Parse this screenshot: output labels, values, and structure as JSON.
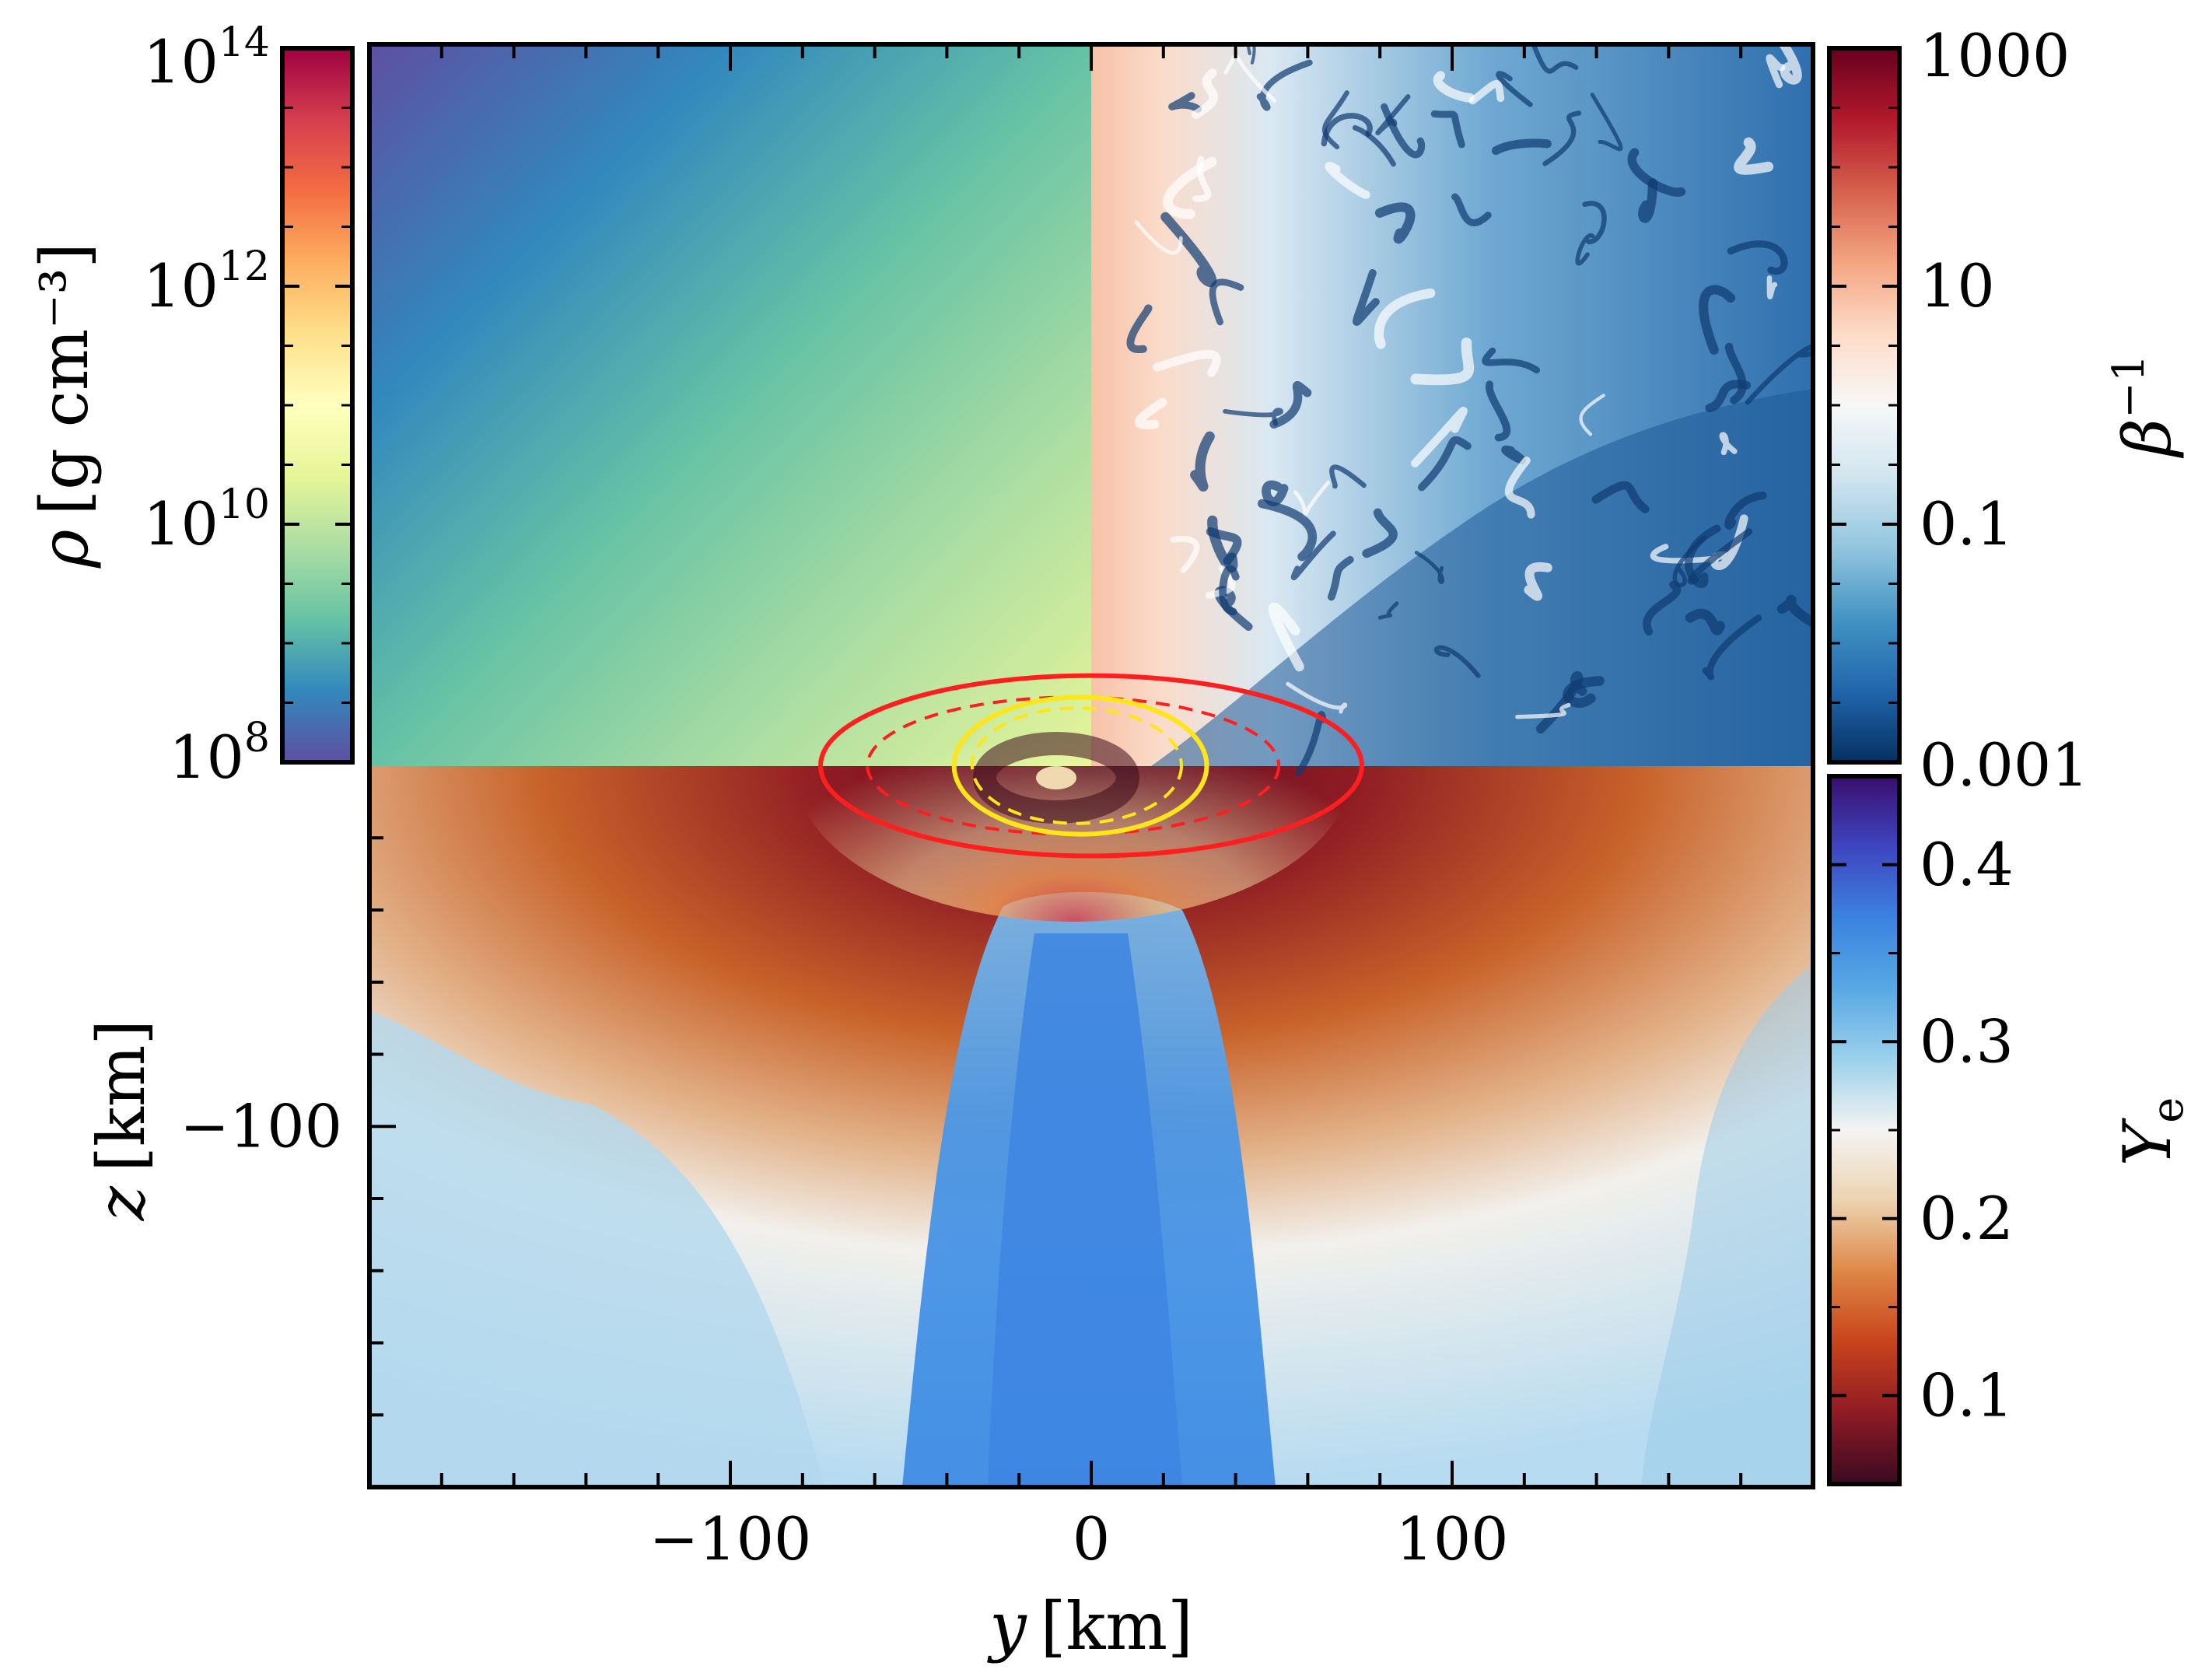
{
  "chart_data": {
    "type": "heatmap",
    "axes": {
      "xlabel": {
        "symbol": "y",
        "unit": "[km]"
      },
      "ylabel": {
        "symbol": "z",
        "unit": "[km]"
      },
      "xlim": [
        -200,
        200
      ],
      "ylim": [
        -200,
        200
      ],
      "x_ticks": [
        {
          "value": -100,
          "label": "−100"
        },
        {
          "value": 0,
          "label": "0"
        },
        {
          "value": 100,
          "label": "100"
        }
      ],
      "x_minor_step": 20,
      "y_ticks": [
        {
          "value": -100,
          "label": "−100"
        }
      ],
      "y_minor_step": 20
    },
    "panels": [
      {
        "quadrant": "top-left",
        "field": "rho",
        "colorbar": "density"
      },
      {
        "quadrant": "top-right",
        "field": "beta_inverse",
        "colorbar": "beta"
      },
      {
        "quadrant": "bottom",
        "field": "Ye",
        "colorbar": "ye"
      }
    ],
    "colorbars": {
      "density": {
        "side": "left",
        "label_symbol": "ρ",
        "label_unit": "[g cm⁻³]",
        "scale": "log",
        "range": [
          8,
          14
        ],
        "ticks": [
          {
            "value": 14,
            "base": "10",
            "exp": "14"
          },
          {
            "value": 12,
            "base": "10",
            "exp": "12"
          },
          {
            "value": 10,
            "base": "10",
            "exp": "10"
          },
          {
            "value": 8,
            "base": "10",
            "exp": "8"
          }
        ],
        "colormap": [
          "#5E4FA2",
          "#3288BD",
          "#66C2A5",
          "#ABDDA4",
          "#E6F598",
          "#FFFFBF",
          "#FEE08B",
          "#FDAE61",
          "#F46D43",
          "#D53E4F",
          "#9E0142"
        ]
      },
      "beta": {
        "side": "right",
        "label_symbol": "β",
        "label_exp": "−1",
        "scale": "log",
        "range": [
          -3,
          3
        ],
        "ticks": [
          {
            "value": 3,
            "label": "1000"
          },
          {
            "value": 1,
            "label": "10"
          },
          {
            "value": -1,
            "label": "0.1"
          },
          {
            "value": -3,
            "label": "0.001"
          }
        ],
        "colormap": [
          "#053061",
          "#2166AC",
          "#4393C3",
          "#92C5DE",
          "#D1E5F0",
          "#F7F7F7",
          "#FDDBC7",
          "#F4A582",
          "#D6604D",
          "#B2182B",
          "#67001F"
        ]
      },
      "ye": {
        "side": "right",
        "label_symbol": "Y",
        "label_sub": "e",
        "scale": "linear",
        "range": [
          0.05,
          0.45
        ],
        "ticks": [
          {
            "value": 0.4,
            "label": "0.4"
          },
          {
            "value": 0.3,
            "label": "0.3"
          },
          {
            "value": 0.2,
            "label": "0.2"
          },
          {
            "value": 0.1,
            "label": "0.1"
          }
        ],
        "colormap": [
          "#3A0A22",
          "#8E1B24",
          "#C8431C",
          "#DE8746",
          "#ECD2B0",
          "#F4F4F2",
          "#9CD0EC",
          "#58A8E4",
          "#3C82E0",
          "#3E45C0",
          "#3A0E6E"
        ]
      }
    },
    "contours": [
      {
        "color": "#FF1F1F",
        "style": "solid",
        "center": [
          0,
          0
        ],
        "semi_axes": [
          75,
          25
        ]
      },
      {
        "color": "#FF1F1F",
        "style": "dashed",
        "center": [
          -5,
          0
        ],
        "semi_axes": [
          57,
          19
        ]
      },
      {
        "color": "#FFE51A",
        "style": "solid",
        "center": [
          -3,
          0
        ],
        "semi_axes": [
          35,
          19
        ]
      },
      {
        "color": "#FFE51A",
        "style": "dashed",
        "center": [
          -4,
          0
        ],
        "semi_axes": [
          29,
          16
        ]
      }
    ]
  }
}
